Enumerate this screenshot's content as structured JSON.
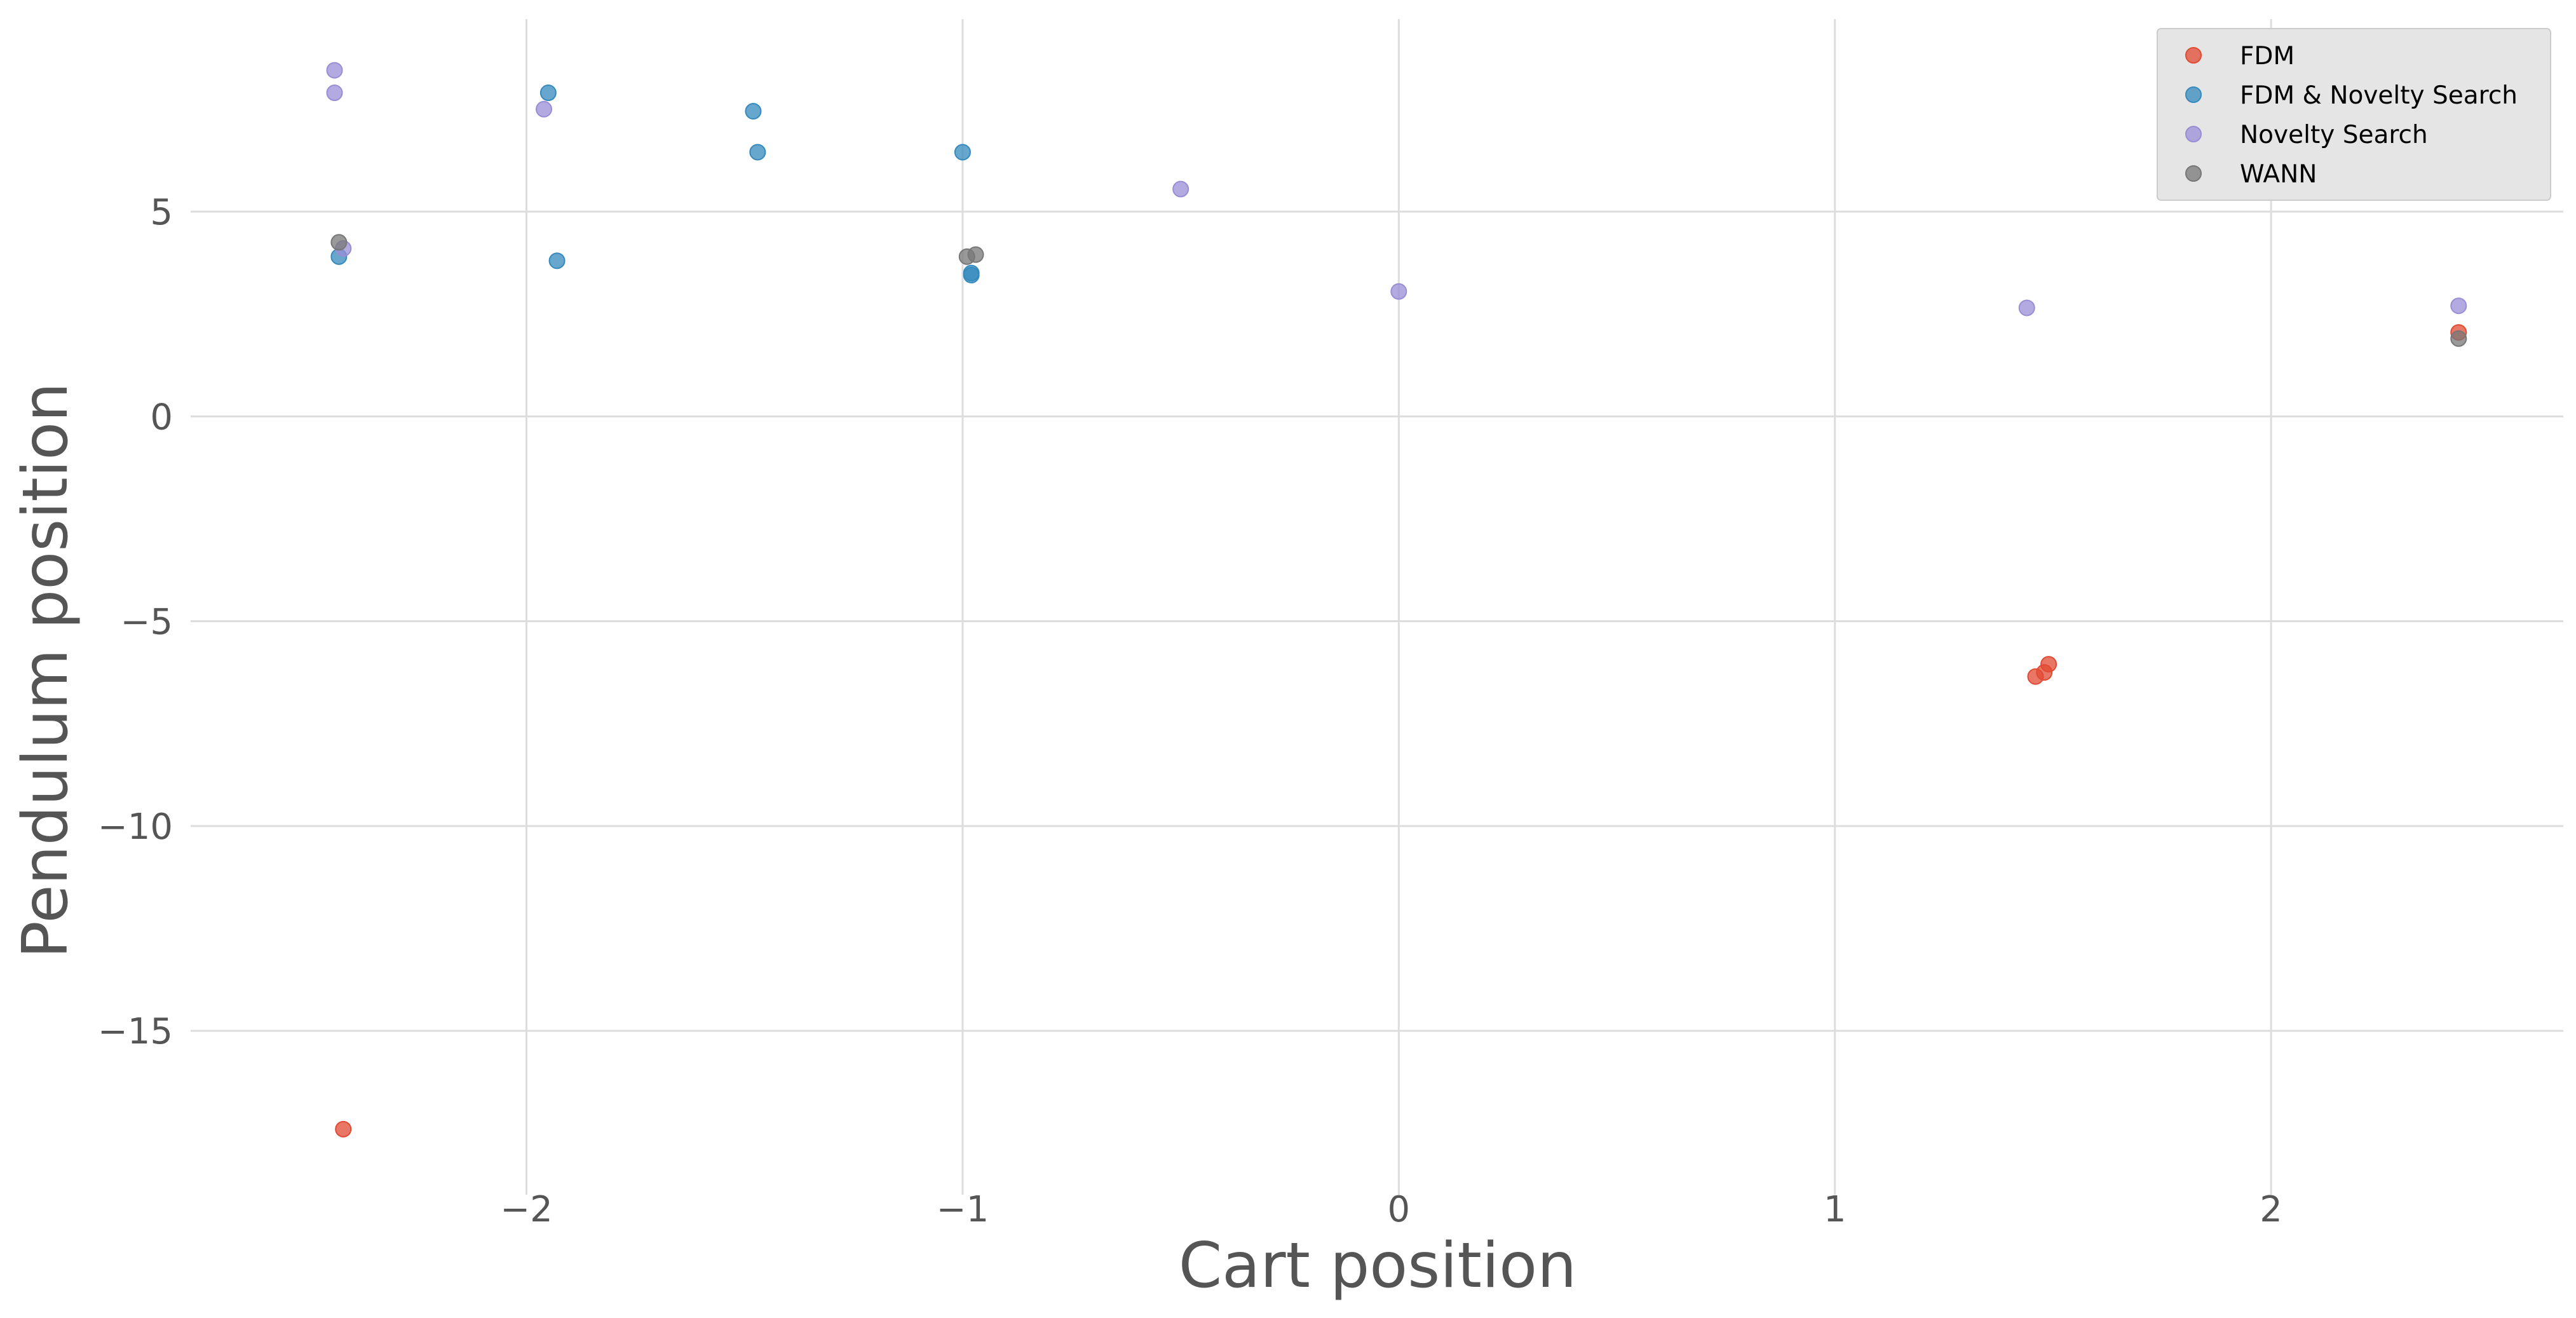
{
  "chart_data": {
    "type": "scatter",
    "title": "",
    "xlabel": "Cart position",
    "ylabel": "Pendulum position",
    "xlim": [
      -2.77,
      2.67
    ],
    "ylim": [
      -19.0,
      9.7
    ],
    "xticks": [
      -2,
      -1,
      0,
      1,
      2
    ],
    "yticks": [
      -15,
      -10,
      -5,
      0,
      5
    ],
    "xtick_labels": [
      "−2",
      "−1",
      "0",
      "1",
      "2"
    ],
    "ytick_labels": [
      "−15",
      "−10",
      "−5",
      "0",
      "5"
    ],
    "grid": true,
    "legend_position": "top-right",
    "series": [
      {
        "name": "FDM",
        "color": "#E24A33",
        "points": [
          [
            -2.42,
            -17.4
          ],
          [
            1.46,
            -6.35
          ],
          [
            1.48,
            -6.25
          ],
          [
            1.49,
            -6.05
          ],
          [
            2.43,
            2.05
          ]
        ]
      },
      {
        "name": "FDM & Novelty Search",
        "color": "#348ABD",
        "points": [
          [
            -2.43,
            3.9
          ],
          [
            -1.95,
            7.9
          ],
          [
            -1.93,
            3.8
          ],
          [
            -1.48,
            7.45
          ],
          [
            -1.47,
            6.45
          ],
          [
            -1.0,
            6.45
          ],
          [
            -0.98,
            3.5
          ],
          [
            -0.98,
            3.45
          ]
        ]
      },
      {
        "name": "Novelty Search",
        "color": "#988ED5",
        "points": [
          [
            -2.44,
            8.45
          ],
          [
            -2.44,
            7.9
          ],
          [
            -2.42,
            4.1
          ],
          [
            -1.96,
            7.5
          ],
          [
            -0.5,
            5.55
          ],
          [
            0.0,
            3.05
          ],
          [
            1.44,
            2.65
          ],
          [
            2.43,
            2.7
          ]
        ]
      },
      {
        "name": "WANN",
        "color": "#777777",
        "points": [
          [
            -2.43,
            4.25
          ],
          [
            -0.99,
            3.9
          ],
          [
            -0.97,
            3.95
          ],
          [
            2.43,
            1.9
          ]
        ]
      }
    ]
  }
}
